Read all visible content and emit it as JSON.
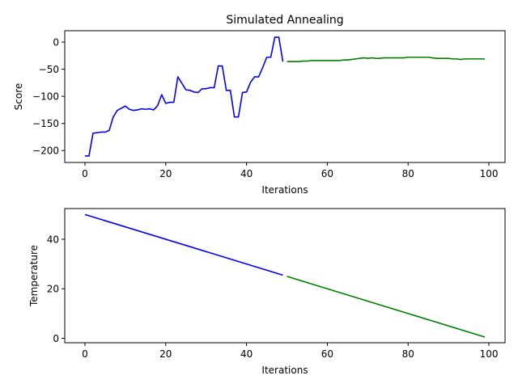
{
  "chart_data": [
    {
      "type": "line",
      "title": "Simulated Annealing",
      "xlabel": "Iterations",
      "ylabel": "Score",
      "xlim": [
        -5,
        104
      ],
      "ylim": [
        -222,
        21
      ],
      "xticks": [
        0,
        20,
        40,
        60,
        80,
        100
      ],
      "yticks": [
        -200,
        -150,
        -100,
        -50,
        0
      ],
      "xtick_labels": [
        "0",
        "20",
        "40",
        "60",
        "80",
        "100"
      ],
      "ytick_labels": [
        "−200",
        "−150",
        "−100",
        "−50",
        "0"
      ],
      "grid": false,
      "series": [
        {
          "color": "#0000ff",
          "x": [
            0,
            1,
            2,
            3,
            4,
            5,
            6,
            7,
            8,
            9,
            10,
            11,
            12,
            13,
            14,
            15,
            16,
            17,
            18,
            19,
            20,
            21,
            22,
            23,
            24,
            25,
            26,
            27,
            28,
            29,
            30,
            31,
            32,
            33,
            34,
            35,
            36,
            37,
            38,
            39,
            40,
            41,
            42,
            43,
            44,
            45,
            46,
            47,
            48,
            49
          ],
          "y": [
            -210,
            -210,
            -168,
            -167,
            -166,
            -166,
            -163,
            -138,
            -126,
            -122,
            -118,
            -124,
            -126,
            -125,
            -123,
            -124,
            -123,
            -125,
            -117,
            -97,
            -113,
            -111,
            -111,
            -64,
            -76,
            -88,
            -89,
            -92,
            -93,
            -86,
            -86,
            -84,
            -84,
            -44,
            -44,
            -89,
            -89,
            -138,
            -138,
            -93,
            -92,
            -74,
            -64,
            -64,
            -47,
            -28,
            -28,
            9,
            9,
            -36
          ]
        },
        {
          "color": "#008000",
          "x": [
            50,
            51,
            52,
            53,
            54,
            55,
            56,
            57,
            58,
            59,
            60,
            61,
            62,
            63,
            64,
            65,
            66,
            67,
            68,
            69,
            70,
            71,
            72,
            73,
            74,
            75,
            76,
            77,
            78,
            79,
            80,
            81,
            82,
            83,
            84,
            85,
            86,
            87,
            88,
            89,
            90,
            91,
            92,
            93,
            94,
            95,
            96,
            97,
            98,
            99
          ],
          "y": [
            -36,
            -36,
            -36,
            -36,
            -35,
            -35,
            -34,
            -34,
            -34,
            -34,
            -34,
            -34,
            -34,
            -34,
            -33,
            -33,
            -32,
            -31,
            -30,
            -29,
            -30,
            -29,
            -30,
            -30,
            -29,
            -29,
            -29,
            -29,
            -29,
            -29,
            -28,
            -28,
            -28,
            -28,
            -28,
            -28,
            -29,
            -30,
            -30,
            -30,
            -30,
            -31,
            -31,
            -32,
            -31,
            -31,
            -31,
            -31,
            -31,
            -31
          ]
        }
      ]
    },
    {
      "type": "line",
      "title": "",
      "xlabel": "Iterations",
      "ylabel": "Temperature",
      "xlim": [
        -5,
        104
      ],
      "ylim": [
        -1.8,
        52.4
      ],
      "xticks": [
        0,
        20,
        40,
        60,
        80,
        100
      ],
      "yticks": [
        0,
        20,
        40
      ],
      "xtick_labels": [
        "0",
        "20",
        "40",
        "60",
        "80",
        "100"
      ],
      "ytick_labels": [
        "0",
        "20",
        "40"
      ],
      "grid": false,
      "series": [
        {
          "color": "#0000ff",
          "x": [
            0,
            49
          ],
          "y": [
            50,
            25.5
          ]
        },
        {
          "color": "#008000",
          "x": [
            50,
            99
          ],
          "y": [
            25,
            0.5
          ]
        }
      ]
    }
  ]
}
